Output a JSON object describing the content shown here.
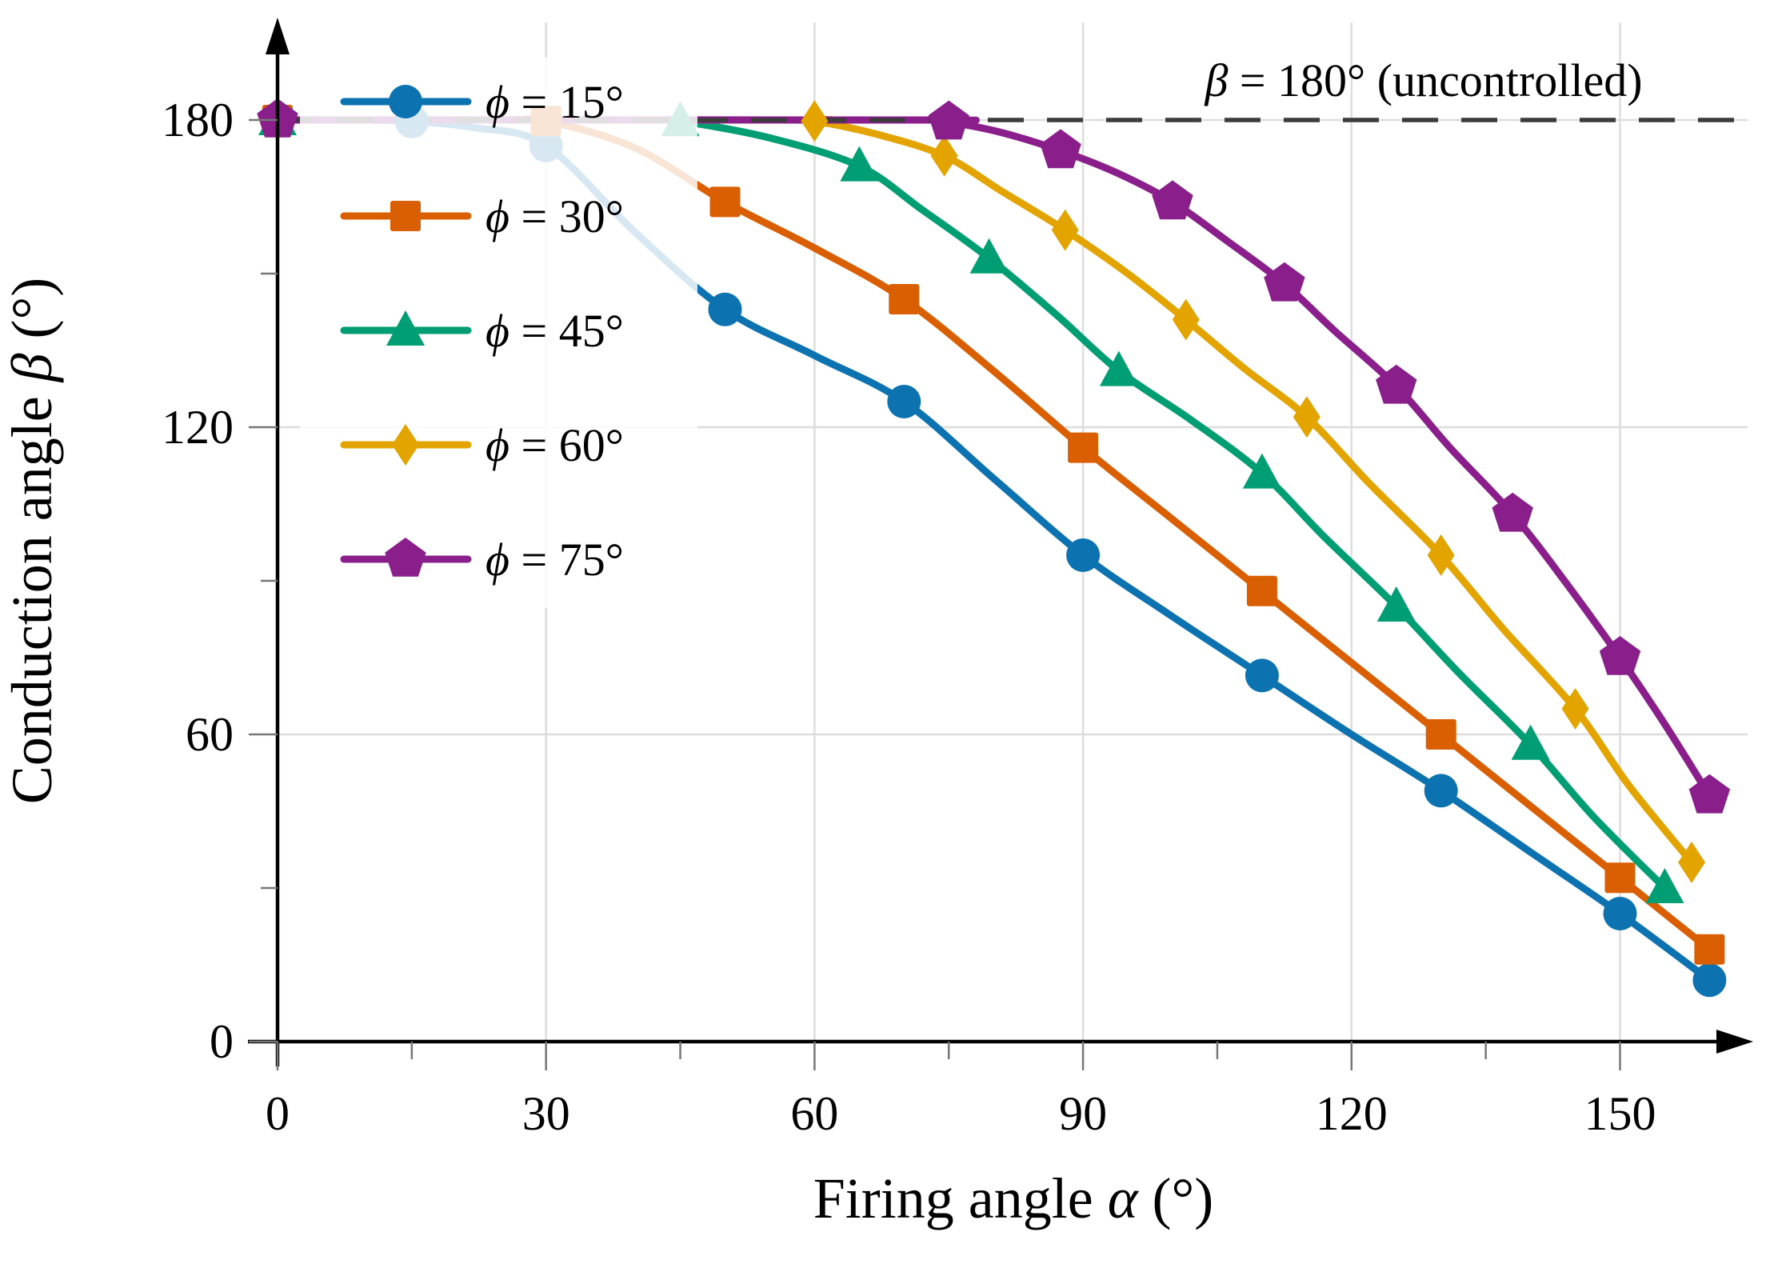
{
  "chart_data": {
    "type": "line",
    "title": "",
    "xlabel": "Firing angle α (°)",
    "ylabel": "Conduction angle β (°)",
    "xlim": [
      0,
      164
    ],
    "ylim": [
      0,
      200
    ],
    "x_ticks_major": [
      0,
      30,
      60,
      90,
      120,
      150
    ],
    "x_ticks_minor": [
      15,
      45,
      75,
      105,
      135
    ],
    "y_ticks_major": [
      0,
      60,
      120,
      180
    ],
    "y_ticks_minor": [
      30,
      90,
      150
    ],
    "x_tick_labels": [
      "0",
      "30",
      "60",
      "90",
      "120",
      "150"
    ],
    "y_tick_labels": [
      "0",
      "60",
      "120",
      "180"
    ],
    "grid_x": [
      30,
      60,
      90,
      120,
      150
    ],
    "grid_y": [
      60,
      120,
      180
    ],
    "grid_on": true,
    "legend_position": "upper-left",
    "reference_line": {
      "y": 180,
      "style": "dashed",
      "line_color": "#3C3C3C",
      "label": "β = 180° (uncontrolled)",
      "label_color": "#5A5A5A"
    },
    "colors": {
      "grid": "#DDDDDD",
      "ticks": "#777777",
      "axis": "#000000",
      "legend_bg_rgba": "255,255,255,0.84"
    },
    "series": [
      {
        "name": "ϕ = 15°",
        "phi": 15,
        "color": "#0C72B0",
        "marker": "circle",
        "points": [
          [
            0,
            180
          ],
          [
            10,
            180
          ],
          [
            15,
            179.7
          ],
          [
            22,
            178.5
          ],
          [
            30,
            175
          ],
          [
            40,
            158
          ],
          [
            50,
            143
          ],
          [
            60,
            134
          ],
          [
            70,
            125
          ],
          [
            80,
            110
          ],
          [
            90,
            95
          ],
          [
            100,
            83
          ],
          [
            110,
            71.5
          ],
          [
            120,
            60
          ],
          [
            130,
            49
          ],
          [
            140,
            37
          ],
          [
            150,
            25
          ],
          [
            160,
            12
          ]
        ],
        "marker_alphas": [
          0,
          15,
          30,
          50,
          70,
          90,
          110,
          130,
          150,
          160
        ]
      },
      {
        "name": "ϕ = 30°",
        "phi": 30,
        "color": "#D95F02",
        "marker": "square",
        "points": [
          [
            0,
            180
          ],
          [
            25,
            180
          ],
          [
            30,
            179.8
          ],
          [
            40,
            174.5
          ],
          [
            50,
            164
          ],
          [
            60,
            155
          ],
          [
            70,
            145
          ],
          [
            80,
            131
          ],
          [
            90,
            116
          ],
          [
            100,
            102
          ],
          [
            110,
            88
          ],
          [
            120,
            74
          ],
          [
            130,
            60
          ],
          [
            140,
            46
          ],
          [
            150,
            32
          ],
          [
            160,
            18
          ]
        ],
        "marker_alphas": [
          0,
          30,
          50,
          70,
          90,
          110,
          130,
          150,
          160
        ]
      },
      {
        "name": "ϕ = 45°",
        "phi": 45,
        "color": "#029E73",
        "marker": "triangle",
        "points": [
          [
            0,
            180
          ],
          [
            42,
            180
          ],
          [
            45,
            179.8
          ],
          [
            55,
            176.5
          ],
          [
            65,
            171
          ],
          [
            72,
            162.5
          ],
          [
            79.5,
            153
          ],
          [
            87,
            142
          ],
          [
            94,
            131
          ],
          [
            102,
            121.5
          ],
          [
            110,
            111
          ],
          [
            117,
            98.5
          ],
          [
            125,
            85
          ],
          [
            132,
            72
          ],
          [
            140,
            58
          ],
          [
            147,
            44
          ],
          [
            155,
            30
          ]
        ],
        "marker_alphas": [
          0,
          45,
          65,
          79.5,
          94,
          110,
          125,
          140,
          155
        ]
      },
      {
        "name": "ϕ = 60°",
        "phi": 60,
        "color": "#E3A400",
        "marker": "diamond",
        "points": [
          [
            0,
            180
          ],
          [
            57,
            180
          ],
          [
            60,
            179.8
          ],
          [
            67,
            177.2
          ],
          [
            74.5,
            173
          ],
          [
            81,
            166
          ],
          [
            88,
            158.5
          ],
          [
            95,
            150
          ],
          [
            101.5,
            141
          ],
          [
            108,
            131.5
          ],
          [
            115,
            122
          ],
          [
            122,
            109
          ],
          [
            130,
            95
          ],
          [
            137,
            80.5
          ],
          [
            145,
            65
          ],
          [
            151,
            50
          ],
          [
            158,
            35
          ]
        ],
        "marker_alphas": [
          0,
          60,
          74.5,
          88,
          101.5,
          115,
          130,
          145,
          158
        ]
      },
      {
        "name": "ϕ = 75°",
        "phi": 75,
        "color": "#8A1F8C",
        "marker": "pentagon",
        "points": [
          [
            0,
            180
          ],
          [
            72,
            180
          ],
          [
            75,
            179.6
          ],
          [
            81,
            177.5
          ],
          [
            87.5,
            174
          ],
          [
            94,
            169.5
          ],
          [
            100,
            164
          ],
          [
            106,
            156.5
          ],
          [
            112.5,
            148
          ],
          [
            118,
            139
          ],
          [
            125,
            128
          ],
          [
            131,
            116
          ],
          [
            138,
            103
          ],
          [
            144,
            89.5
          ],
          [
            150,
            75
          ],
          [
            155,
            62
          ],
          [
            160,
            48
          ]
        ],
        "marker_alphas": [
          0,
          75,
          87.5,
          100,
          112.5,
          125,
          138,
          150,
          160
        ]
      }
    ]
  }
}
